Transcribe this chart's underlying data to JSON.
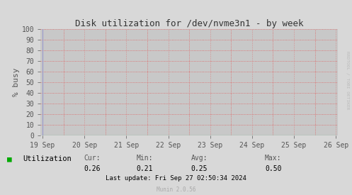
{
  "title": "Disk utilization for /dev/nvme3n1 - by week",
  "ylabel": "% busy",
  "bg_color": "#d8d8d8",
  "plot_bg_color": "#c8c8c8",
  "grid_color_h_solid": "#e8e8e8",
  "grid_color_dot": "#e06060",
  "x_labels": [
    "19 Sep",
    "20 Sep",
    "21 Sep",
    "22 Sep",
    "23 Sep",
    "24 Sep",
    "25 Sep",
    "26 Sep"
  ],
  "x_ticks": [
    0,
    1,
    2,
    3,
    4,
    5,
    6,
    7
  ],
  "ylim": [
    0,
    100
  ],
  "yticks": [
    0,
    10,
    20,
    30,
    40,
    50,
    60,
    70,
    80,
    90,
    100
  ],
  "line_color": "#00bb00",
  "line_value": 0.25,
  "legend_label": "Utilization",
  "legend_color": "#00aa00",
  "cur_val": "0.26",
  "min_val": "0.21",
  "avg_val": "0.25",
  "max_val": "0.50",
  "last_update": "Last update: Fri Sep 27 02:50:34 2024",
  "munin_text": "Munin 2.0.56",
  "watermark": "RRDTOOL / TOBI OETIKER",
  "title_color": "#333333",
  "tick_color": "#555555",
  "axis_arrow_color": "#9999cc",
  "watermark_color": "#bbbbbb",
  "stats_label_color": "#555555",
  "munin_color": "#aaaaaa"
}
